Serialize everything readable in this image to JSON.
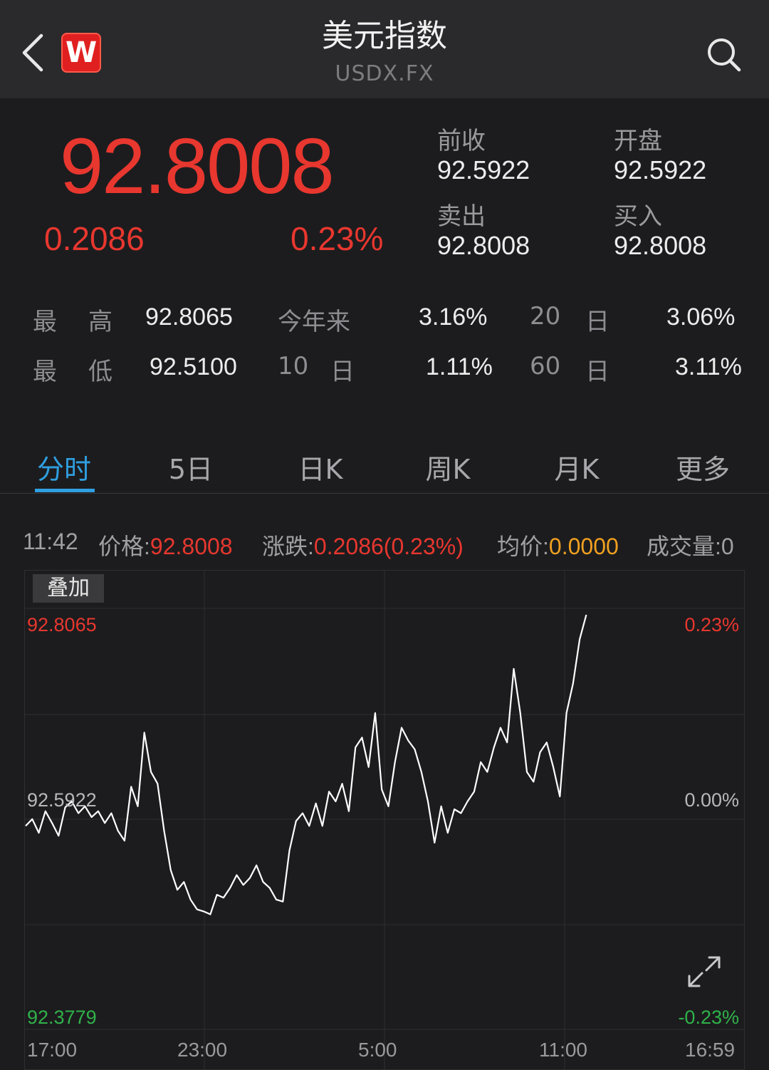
{
  "header": {
    "title": "美元指数",
    "subtitle": "USDX.FX",
    "logo_letter": "W",
    "back_icon": "chevron-left-icon",
    "search_icon": "search-icon"
  },
  "quote": {
    "price": "92.8008",
    "change": "0.2086",
    "change_pct": "0.23%",
    "prev_close_label": "前收",
    "prev_close": "92.5922",
    "open_label": "开盘",
    "open": "92.5922",
    "sell_label": "卖出",
    "sell": "92.8008",
    "buy_label": "买入",
    "buy": "92.8008"
  },
  "stats": {
    "high_label_1": "最",
    "high_label_2": "高",
    "high": "92.8065",
    "low_label_1": "最",
    "low_label_2": "低",
    "low": "92.5100",
    "ytd_label": "今年来",
    "ytd": "3.16%",
    "d20_num": "20",
    "d20_unit": "日",
    "d20": "3.06%",
    "d10_num": "10",
    "d10_unit": "日",
    "d10": "1.11%",
    "d60_num": "60",
    "d60_unit": "日",
    "d60": "3.11%"
  },
  "tabs": [
    {
      "label": "分时",
      "active": true
    },
    {
      "label": "5日",
      "active": false
    },
    {
      "label": "日K",
      "active": false
    },
    {
      "label": "周K",
      "active": false
    },
    {
      "label": "月K",
      "active": false
    },
    {
      "label": "更多",
      "active": false
    }
  ],
  "info": {
    "time": "11:42",
    "price_label": "价格:",
    "price": "92.8008",
    "change_label": "涨跌:",
    "change": "0.2086(0.23%)",
    "avg_label": "均价:",
    "avg": "0.0000",
    "volume_label": "成交量:",
    "volume": "0"
  },
  "overlay_button": "叠加",
  "expand_icon": "expand-icon",
  "colors": {
    "up": "#e8372f",
    "down": "#2fb24a",
    "accent": "#2f9fe0",
    "avg": "#f0a020",
    "line": "#ffffff"
  },
  "chart_data": {
    "type": "line",
    "y_left_labels": [
      "92.8065",
      "92.5922",
      "92.3779"
    ],
    "y_right_labels": [
      "0.23%",
      "0.00%",
      "-0.23%"
    ],
    "x_tick_labels": [
      "17:00",
      "23:00",
      "5:00",
      "11:00",
      "16:59"
    ],
    "ylim": [
      92.3779,
      92.8065
    ],
    "reference": 92.5922,
    "grid": true,
    "series": [
      {
        "values": [
          92.585,
          92.592,
          92.578,
          92.6,
          92.588,
          92.575,
          92.604,
          92.61,
          92.598,
          92.605,
          92.594,
          92.6,
          92.588,
          92.598,
          92.58,
          92.57,
          92.625,
          92.605,
          92.68,
          92.64,
          92.628,
          92.58,
          92.54,
          92.52,
          92.528,
          92.51,
          92.5,
          92.498,
          92.495,
          92.515,
          92.512,
          92.522,
          92.535,
          92.525,
          92.532,
          92.545,
          92.528,
          92.522,
          92.51,
          92.508,
          92.56,
          92.59,
          92.598,
          92.585,
          92.608,
          92.585,
          92.62,
          92.61,
          92.628,
          92.6,
          92.665,
          92.675,
          92.645,
          92.7,
          92.622,
          92.605,
          92.65,
          92.685,
          92.672,
          92.663,
          92.64,
          92.61,
          92.568,
          92.605,
          92.578,
          92.602,
          92.598,
          92.61,
          92.62,
          92.65,
          92.64,
          92.665,
          92.685,
          92.67,
          92.745,
          92.7,
          92.64,
          92.63,
          92.66,
          92.67,
          92.645,
          92.615,
          92.7,
          92.73,
          92.775,
          92.8
        ]
      }
    ]
  }
}
